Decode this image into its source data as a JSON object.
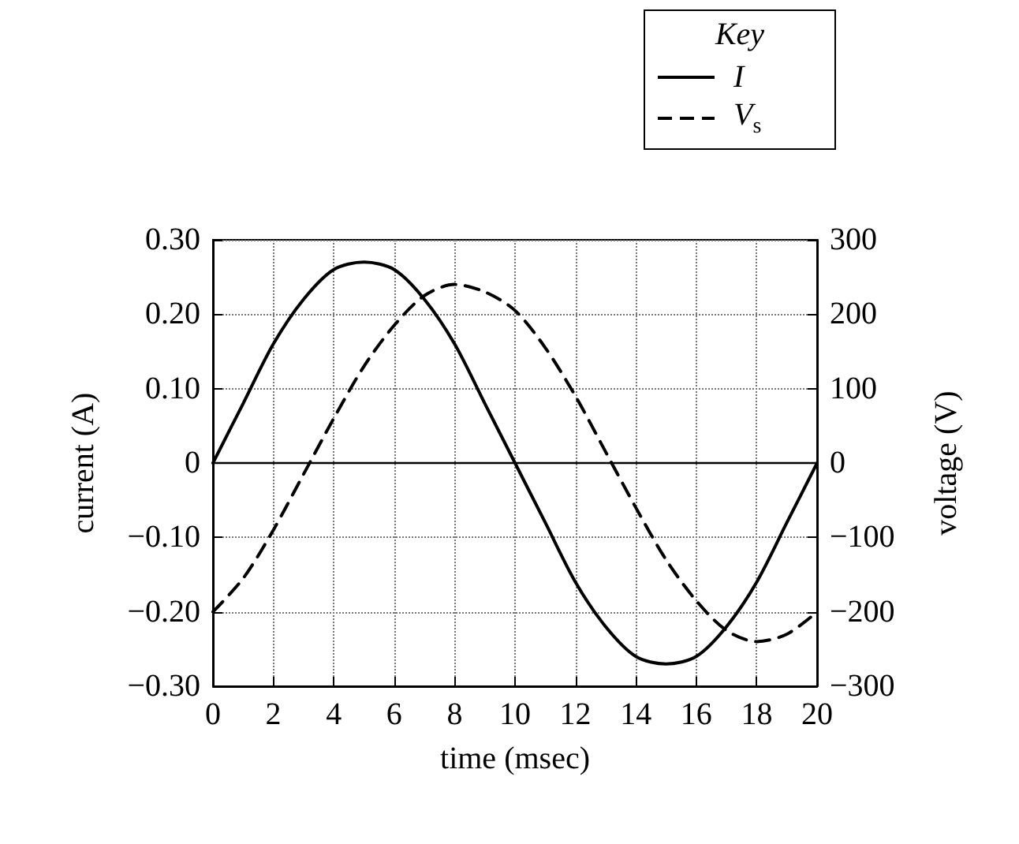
{
  "chart_data": {
    "type": "line",
    "xlabel": "time (msec)",
    "ylabel": "current (A)",
    "y2label": "voltage (V)",
    "legend_title": "Key",
    "legend": "top right",
    "grid": true,
    "marker": "none",
    "x": [
      0,
      1,
      2,
      3,
      4,
      5,
      6,
      7,
      8,
      9,
      10,
      11,
      12,
      13,
      14,
      15,
      16,
      17,
      18,
      19,
      20
    ],
    "series": [
      {
        "name": "I",
        "color": "#000000",
        "line_style": "solid",
        "values": [
          0,
          0.08,
          0.16,
          0.22,
          0.26,
          0.27,
          0.26,
          0.22,
          0.16,
          0.08,
          0,
          -0.08,
          -0.16,
          -0.22,
          -0.26,
          -0.27,
          -0.26,
          -0.22,
          -0.16,
          -0.08,
          0
        ]
      },
      {
        "name": "V$_{s}$",
        "color": "#000000",
        "line_style": "dashed",
        "axis": "y2",
        "values": [
          -200,
          -155,
          -90,
          -15,
          60,
          130,
          185,
          225,
          240,
          230,
          205,
          155,
          90,
          15,
          -60,
          -130,
          -185,
          -225,
          -240,
          -230,
          -200
        ]
      }
    ],
    "xlim": [
      0,
      20
    ],
    "xticks": [
      0,
      2,
      4,
      6,
      8,
      10,
      12,
      14,
      16,
      18,
      20
    ],
    "ylim": [
      -0.3,
      0.3
    ],
    "yticks": [
      {
        "value": -0.3,
        "label": "−0.30"
      },
      {
        "value": -0.2,
        "label": "−0.20"
      },
      {
        "value": -0.1,
        "label": "−0.10"
      },
      {
        "value": 0,
        "label": "0"
      },
      {
        "value": 0.1,
        "label": "0.10"
      },
      {
        "value": 0.2,
        "label": "0.20"
      },
      {
        "value": 0.3,
        "label": "0.30"
      }
    ],
    "y2lim": [
      -300,
      300
    ],
    "y2ticks": [
      {
        "value": -300,
        "label": "−300"
      },
      {
        "value": -200,
        "label": "−200"
      },
      {
        "value": -100,
        "label": "−100"
      },
      0,
      100,
      200,
      300
    ],
    "ref_lines": [
      {
        "axis": "y",
        "value": 0,
        "color": "#000000",
        "line_style": "solid"
      }
    ]
  }
}
